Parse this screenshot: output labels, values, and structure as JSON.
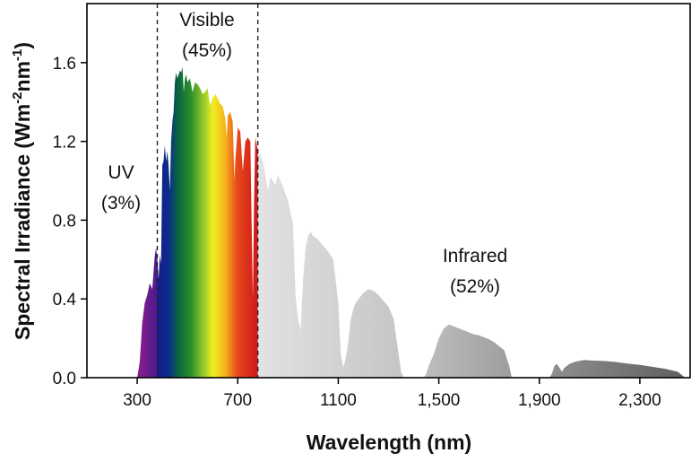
{
  "chart_data": {
    "type": "area",
    "title": "",
    "xlabel": "Wavelength (nm)",
    "ylabel_parts": [
      "Spectral Irradiance (Wm",
      "-2",
      "nm",
      "-1",
      ")"
    ],
    "xlim": [
      100,
      2500
    ],
    "ylim": [
      0,
      1.9
    ],
    "x_ticks": [
      300,
      700,
      1100,
      1500,
      1900,
      2300
    ],
    "x_tick_labels": [
      "300",
      "700",
      "1100",
      "1,500",
      "1,900",
      "2,300"
    ],
    "y_ticks": [
      0,
      0.4,
      0.8,
      1.2,
      1.6
    ],
    "y_tick_labels": [
      "0.0",
      "0.4",
      "0.8",
      "1.2",
      "1.6"
    ],
    "region_boundaries_nm": [
      380,
      780
    ],
    "regions": [
      {
        "name": "UV",
        "label": "UV",
        "share": "(3%)"
      },
      {
        "name": "Visible",
        "label": "Visible",
        "share": "(45%)"
      },
      {
        "name": "Infrared",
        "label": "Infrared",
        "share": "(52%)"
      }
    ],
    "colors": {
      "uv": "#7a1b8c",
      "infrared_light": "#dcdcdc",
      "infrared_dark": "#6e6e6e",
      "boundary": "#222222",
      "axis": "#000000"
    },
    "spectrum": [
      [
        300,
        0.0
      ],
      [
        310,
        0.08
      ],
      [
        320,
        0.28
      ],
      [
        330,
        0.38
      ],
      [
        340,
        0.42
      ],
      [
        350,
        0.48
      ],
      [
        360,
        0.45
      ],
      [
        370,
        0.62
      ],
      [
        375,
        0.66
      ],
      [
        380,
        0.6
      ],
      [
        385,
        0.5
      ],
      [
        390,
        0.62
      ],
      [
        395,
        0.58
      ],
      [
        400,
        1.08
      ],
      [
        405,
        1.1
      ],
      [
        410,
        1.18
      ],
      [
        415,
        1.1
      ],
      [
        420,
        1.15
      ],
      [
        425,
        1.08
      ],
      [
        430,
        0.95
      ],
      [
        435,
        1.2
      ],
      [
        440,
        1.3
      ],
      [
        445,
        1.35
      ],
      [
        450,
        1.5
      ],
      [
        455,
        1.55
      ],
      [
        460,
        1.52
      ],
      [
        465,
        1.54
      ],
      [
        470,
        1.56
      ],
      [
        475,
        1.55
      ],
      [
        480,
        1.58
      ],
      [
        485,
        1.45
      ],
      [
        490,
        1.52
      ],
      [
        495,
        1.54
      ],
      [
        500,
        1.5
      ],
      [
        510,
        1.52
      ],
      [
        520,
        1.45
      ],
      [
        530,
        1.5
      ],
      [
        540,
        1.49
      ],
      [
        550,
        1.47
      ],
      [
        560,
        1.44
      ],
      [
        570,
        1.45
      ],
      [
        580,
        1.47
      ],
      [
        590,
        1.38
      ],
      [
        600,
        1.42
      ],
      [
        610,
        1.44
      ],
      [
        620,
        1.42
      ],
      [
        630,
        1.39
      ],
      [
        640,
        1.38
      ],
      [
        650,
        1.32
      ],
      [
        656,
        1.22
      ],
      [
        660,
        1.33
      ],
      [
        670,
        1.35
      ],
      [
        680,
        1.3
      ],
      [
        687,
        1.0
      ],
      [
        690,
        1.1
      ],
      [
        700,
        1.27
      ],
      [
        710,
        1.25
      ],
      [
        720,
        1.05
      ],
      [
        730,
        1.2
      ],
      [
        740,
        1.22
      ],
      [
        750,
        1.2
      ],
      [
        760,
        0.4
      ],
      [
        765,
        0.9
      ],
      [
        770,
        1.22
      ],
      [
        780,
        1.15
      ],
      [
        790,
        1.13
      ],
      [
        800,
        1.1
      ],
      [
        820,
        0.95
      ],
      [
        830,
        1.02
      ],
      [
        850,
        0.98
      ],
      [
        860,
        1.03
      ],
      [
        880,
        0.97
      ],
      [
        900,
        0.9
      ],
      [
        920,
        0.78
      ],
      [
        930,
        0.42
      ],
      [
        940,
        0.3
      ],
      [
        950,
        0.24
      ],
      [
        960,
        0.5
      ],
      [
        970,
        0.66
      ],
      [
        980,
        0.72
      ],
      [
        990,
        0.74
      ],
      [
        1000,
        0.72
      ],
      [
        1020,
        0.7
      ],
      [
        1040,
        0.67
      ],
      [
        1060,
        0.64
      ],
      [
        1080,
        0.6
      ],
      [
        1100,
        0.38
      ],
      [
        1110,
        0.12
      ],
      [
        1120,
        0.05
      ],
      [
        1130,
        0.1
      ],
      [
        1140,
        0.18
      ],
      [
        1150,
        0.3
      ],
      [
        1165,
        0.37
      ],
      [
        1180,
        0.4
      ],
      [
        1200,
        0.43
      ],
      [
        1220,
        0.45
      ],
      [
        1240,
        0.44
      ],
      [
        1260,
        0.42
      ],
      [
        1280,
        0.39
      ],
      [
        1300,
        0.36
      ],
      [
        1320,
        0.3
      ],
      [
        1340,
        0.12
      ],
      [
        1350,
        0.03
      ],
      [
        1360,
        0.0
      ],
      [
        1440,
        0.0
      ],
      [
        1450,
        0.02
      ],
      [
        1460,
        0.06
      ],
      [
        1480,
        0.12
      ],
      [
        1500,
        0.2
      ],
      [
        1520,
        0.25
      ],
      [
        1540,
        0.27
      ],
      [
        1560,
        0.26
      ],
      [
        1580,
        0.25
      ],
      [
        1600,
        0.24
      ],
      [
        1620,
        0.23
      ],
      [
        1640,
        0.22
      ],
      [
        1660,
        0.215
      ],
      [
        1680,
        0.205
      ],
      [
        1700,
        0.195
      ],
      [
        1720,
        0.18
      ],
      [
        1740,
        0.16
      ],
      [
        1760,
        0.14
      ],
      [
        1780,
        0.06
      ],
      [
        1790,
        0.0
      ],
      [
        1940,
        0.0
      ],
      [
        1950,
        0.02
      ],
      [
        1960,
        0.06
      ],
      [
        1970,
        0.07
      ],
      [
        1980,
        0.05
      ],
      [
        1990,
        0.03
      ],
      [
        2000,
        0.05
      ],
      [
        2020,
        0.07
      ],
      [
        2040,
        0.08
      ],
      [
        2060,
        0.085
      ],
      [
        2080,
        0.09
      ],
      [
        2100,
        0.088
      ],
      [
        2150,
        0.085
      ],
      [
        2200,
        0.08
      ],
      [
        2250,
        0.072
      ],
      [
        2300,
        0.065
      ],
      [
        2350,
        0.055
      ],
      [
        2400,
        0.045
      ],
      [
        2450,
        0.03
      ],
      [
        2480,
        0.0
      ]
    ]
  }
}
